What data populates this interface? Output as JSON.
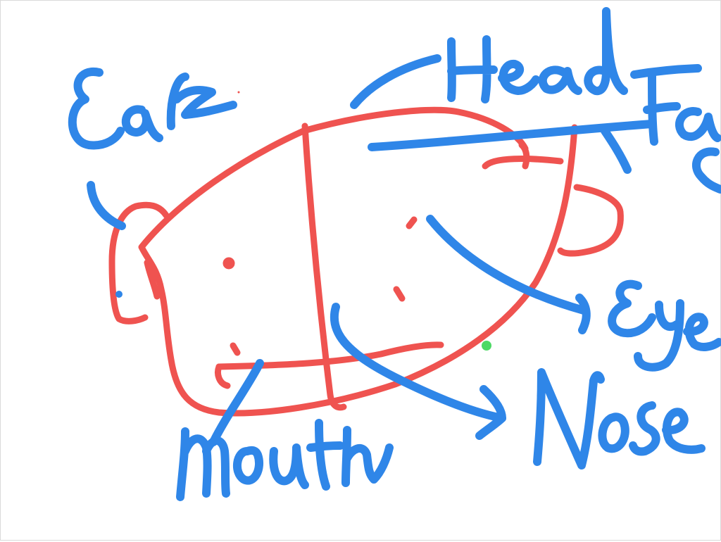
{
  "labels": {
    "ear": "Ear",
    "head": "Head",
    "face": "Face",
    "eye": "Eye",
    "nose": "Nose",
    "mouth": "Mouth"
  },
  "colors": {
    "drawing": "#ef5350",
    "annotation": "#2f86e8",
    "cursor_dot": "#4cd964",
    "background": "#ffffff"
  }
}
